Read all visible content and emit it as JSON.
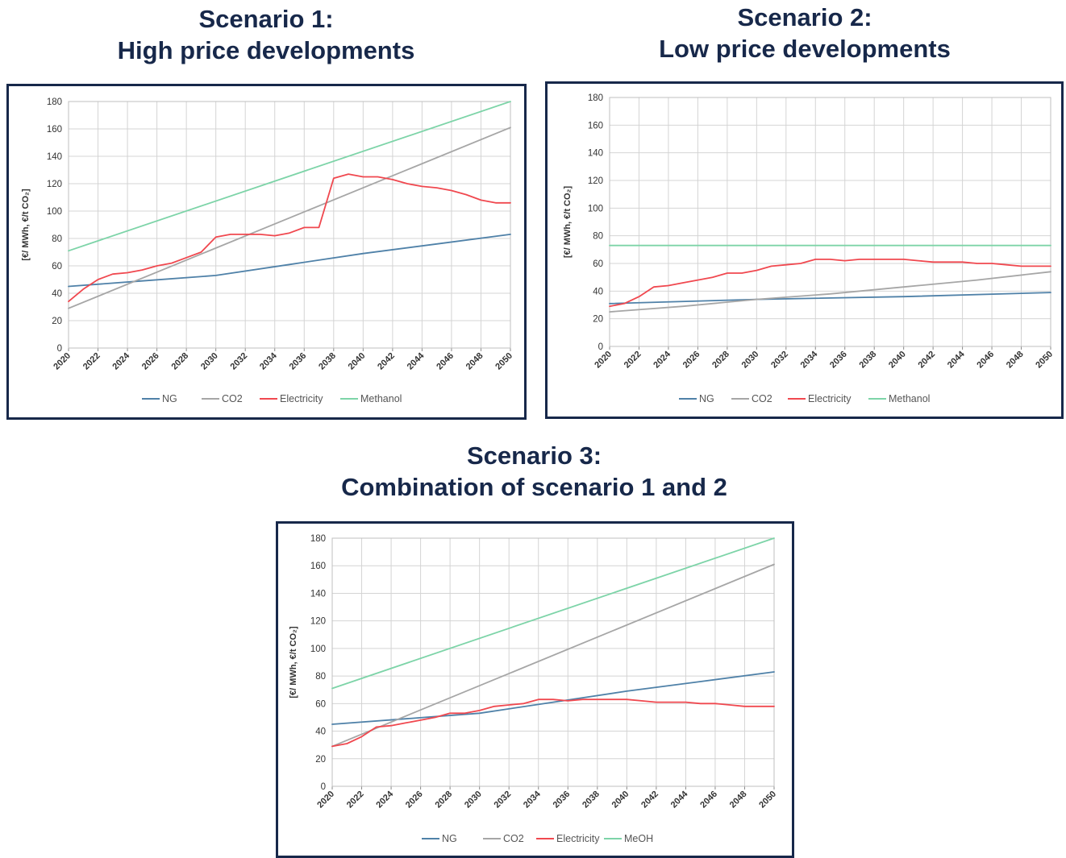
{
  "titles": {
    "s1_line1": "Scenario 1:",
    "s1_line2": "High price developments",
    "s2_line1": "Scenario 2:",
    "s2_line2": "Low price developments",
    "s3_line1": "Scenario 3:",
    "s3_line2": "Combination of scenario 1 and 2"
  },
  "colors": {
    "title": "#17284a",
    "border": "#17284a",
    "NG": "#4f81a8",
    "CO2": "#a6a6a6",
    "Electricity": "#f0484f",
    "Methanol": "#7dd4a8"
  },
  "chart_data": [
    {
      "type": "line",
      "ylabel": "[€/ MWh,  €/t CO₂]",
      "ylim": [
        0,
        180
      ],
      "yticks": [
        0,
        20,
        40,
        60,
        80,
        100,
        120,
        140,
        160,
        180
      ],
      "xticks": [
        2020,
        2022,
        2024,
        2026,
        2028,
        2030,
        2032,
        2034,
        2036,
        2038,
        2040,
        2042,
        2044,
        2046,
        2048,
        2050
      ],
      "grid": true,
      "legend": "bottom",
      "series": [
        {
          "name": "NG",
          "color": "#4f81a8",
          "x": [
            2020,
            2025,
            2030,
            2035,
            2040,
            2045,
            2050
          ],
          "y": [
            45,
            49,
            53,
            61,
            69,
            76,
            83
          ]
        },
        {
          "name": "CO2",
          "color": "#a6a6a6",
          "x": [
            2020,
            2050
          ],
          "y": [
            29,
            161
          ]
        },
        {
          "name": "Electricity",
          "color": "#f0484f",
          "x": [
            2020,
            2021,
            2022,
            2023,
            2024,
            2025,
            2026,
            2027,
            2028,
            2029,
            2030,
            2031,
            2032,
            2033,
            2034,
            2035,
            2036,
            2037,
            2038,
            2039,
            2040,
            2041,
            2042,
            2043,
            2044,
            2045,
            2046,
            2047,
            2048,
            2049,
            2050
          ],
          "y": [
            34,
            43,
            50,
            54,
            55,
            57,
            60,
            62,
            66,
            70,
            81,
            83,
            83,
            83,
            82,
            84,
            88,
            88,
            124,
            127,
            125,
            125,
            123,
            120,
            118,
            117,
            115,
            112,
            108,
            106,
            106
          ]
        },
        {
          "name": "Methanol",
          "color": "#7dd4a8",
          "x": [
            2020,
            2050
          ],
          "y": [
            71,
            180
          ]
        }
      ]
    },
    {
      "type": "line",
      "ylabel": "[€/ MWh,  €/t CO₂]",
      "ylim": [
        0,
        180
      ],
      "yticks": [
        0,
        20,
        40,
        60,
        80,
        100,
        120,
        140,
        160,
        180
      ],
      "xticks": [
        2020,
        2022,
        2024,
        2026,
        2028,
        2030,
        2032,
        2034,
        2036,
        2038,
        2040,
        2042,
        2044,
        2046,
        2048,
        2050
      ],
      "grid": true,
      "legend": "bottom",
      "series": [
        {
          "name": "NG",
          "color": "#4f81a8",
          "x": [
            2020,
            2030,
            2040,
            2050
          ],
          "y": [
            31,
            34,
            36,
            39
          ]
        },
        {
          "name": "CO2",
          "color": "#a6a6a6",
          "x": [
            2020,
            2025,
            2030,
            2035,
            2040,
            2045,
            2050
          ],
          "y": [
            25,
            29,
            34,
            38,
            43,
            48,
            54
          ]
        },
        {
          "name": "Electricity",
          "color": "#f0484f",
          "x": [
            2020,
            2021,
            2022,
            2023,
            2024,
            2025,
            2026,
            2027,
            2028,
            2029,
            2030,
            2031,
            2032,
            2033,
            2034,
            2035,
            2036,
            2037,
            2038,
            2039,
            2040,
            2041,
            2042,
            2043,
            2044,
            2045,
            2046,
            2047,
            2048,
            2049,
            2050
          ],
          "y": [
            29,
            31,
            36,
            43,
            44,
            46,
            48,
            50,
            53,
            53,
            55,
            58,
            59,
            60,
            63,
            63,
            62,
            63,
            63,
            63,
            63,
            62,
            61,
            61,
            61,
            60,
            60,
            59,
            58,
            58,
            58
          ]
        },
        {
          "name": "Methanol",
          "color": "#7dd4a8",
          "x": [
            2020,
            2050
          ],
          "y": [
            73,
            73
          ]
        }
      ]
    },
    {
      "type": "line",
      "ylabel": "[€/ MWh,  €/t CO₂]",
      "ylim": [
        0,
        180
      ],
      "yticks": [
        0,
        20,
        40,
        60,
        80,
        100,
        120,
        140,
        160,
        180
      ],
      "xticks": [
        2020,
        2022,
        2024,
        2026,
        2028,
        2030,
        2032,
        2034,
        2036,
        2038,
        2040,
        2042,
        2044,
        2046,
        2048,
        2050
      ],
      "grid": true,
      "legend": "bottom",
      "series": [
        {
          "name": "NG",
          "color": "#4f81a8",
          "x": [
            2020,
            2025,
            2030,
            2035,
            2040,
            2045,
            2050
          ],
          "y": [
            45,
            49,
            53,
            61,
            69,
            76,
            83
          ]
        },
        {
          "name": "CO2",
          "color": "#a6a6a6",
          "x": [
            2020,
            2050
          ],
          "y": [
            29,
            161
          ]
        },
        {
          "name": "Electricity",
          "color": "#f0484f",
          "x": [
            2020,
            2021,
            2022,
            2023,
            2024,
            2025,
            2026,
            2027,
            2028,
            2029,
            2030,
            2031,
            2032,
            2033,
            2034,
            2035,
            2036,
            2037,
            2038,
            2039,
            2040,
            2041,
            2042,
            2043,
            2044,
            2045,
            2046,
            2047,
            2048,
            2049,
            2050
          ],
          "y": [
            29,
            31,
            36,
            43,
            44,
            46,
            48,
            50,
            53,
            53,
            55,
            58,
            59,
            60,
            63,
            63,
            62,
            63,
            63,
            63,
            63,
            62,
            61,
            61,
            61,
            60,
            60,
            59,
            58,
            58,
            58
          ]
        },
        {
          "name": "MeOH",
          "color": "#7dd4a8",
          "x": [
            2020,
            2050
          ],
          "y": [
            71,
            180
          ]
        }
      ]
    }
  ]
}
